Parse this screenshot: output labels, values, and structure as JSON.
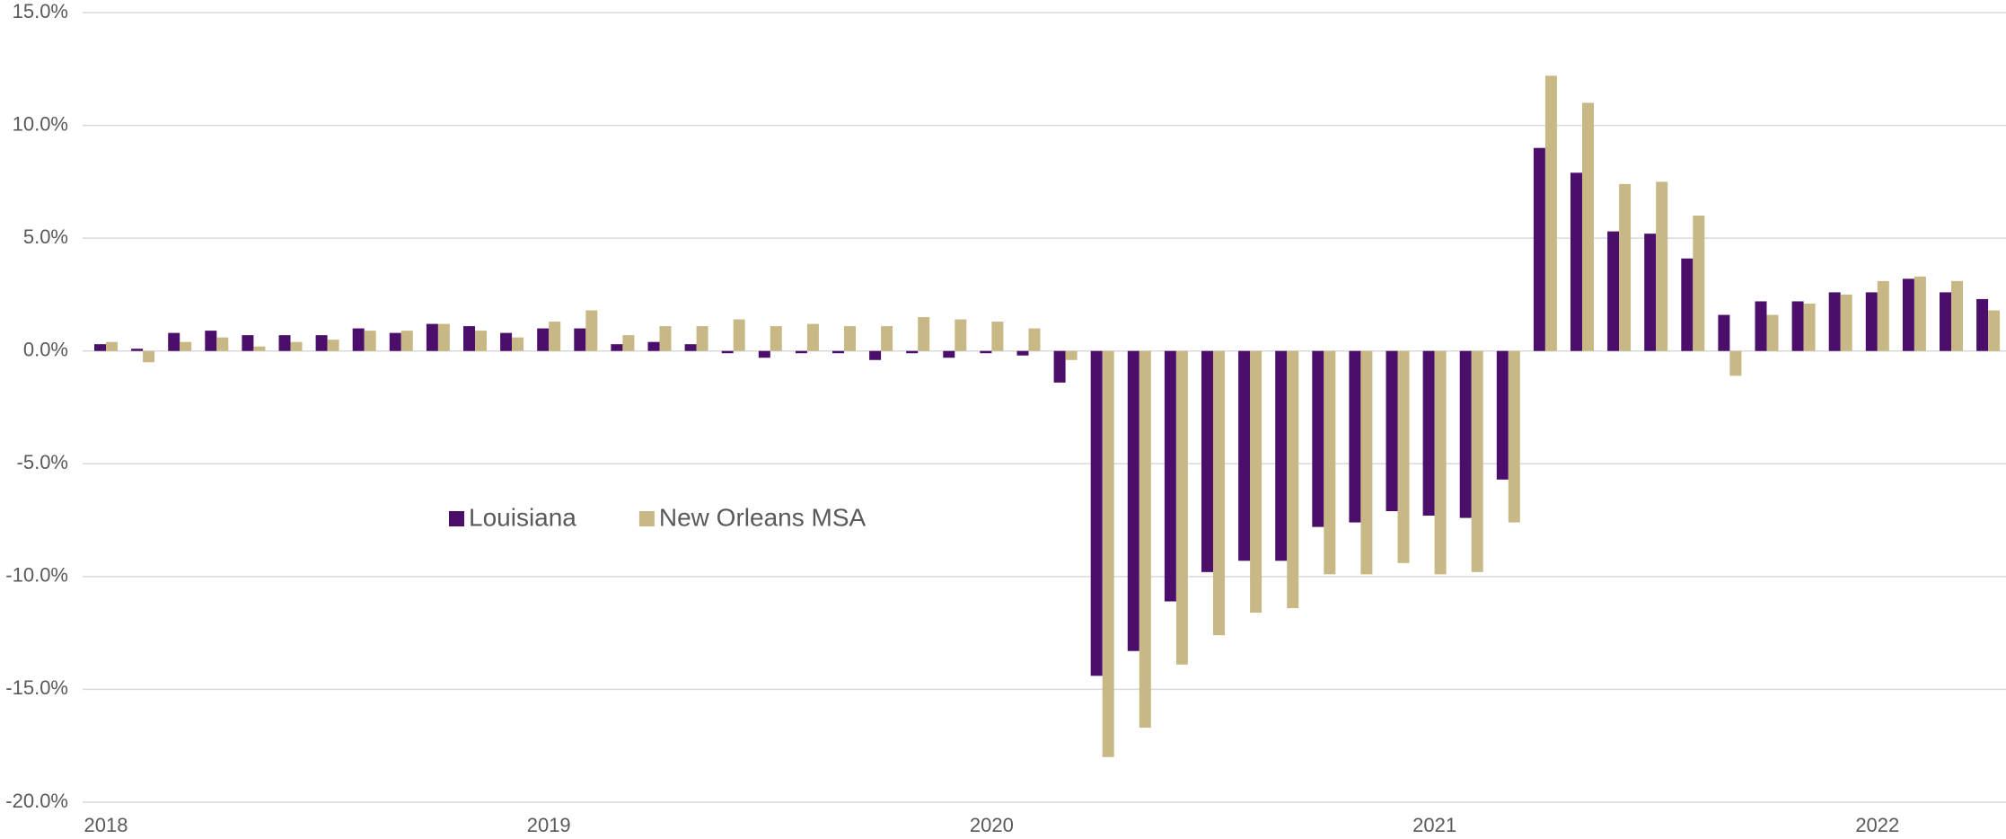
{
  "chart_data": {
    "type": "bar",
    "categories": [
      "2018",
      null,
      null,
      null,
      null,
      null,
      null,
      null,
      null,
      null,
      null,
      null,
      "2019",
      null,
      null,
      null,
      null,
      null,
      null,
      null,
      null,
      null,
      null,
      null,
      "2020",
      null,
      null,
      null,
      null,
      null,
      null,
      null,
      null,
      null,
      null,
      null,
      "2021",
      null,
      null,
      null,
      null,
      null,
      null,
      null,
      null,
      null,
      null,
      null,
      "2022",
      null,
      null,
      null
    ],
    "series": [
      {
        "name": "Louisiana",
        "color": "#4b0f6b",
        "values": [
          0.3,
          0.1,
          0.8,
          0.9,
          0.7,
          0.7,
          0.7,
          1.0,
          0.8,
          1.2,
          1.1,
          0.8,
          1.0,
          1.0,
          0.3,
          0.4,
          0.3,
          -0.1,
          -0.3,
          -0.1,
          -0.1,
          -0.4,
          -0.1,
          -0.3,
          -0.1,
          -0.2,
          -1.4,
          -14.4,
          -13.3,
          -11.1,
          -9.8,
          -9.3,
          -9.3,
          -7.8,
          -7.6,
          -7.1,
          -7.3,
          -7.4,
          -5.7,
          9.0,
          7.9,
          5.3,
          5.2,
          4.1,
          1.6,
          2.2,
          2.2,
          2.6,
          2.6,
          3.2,
          2.6,
          2.3
        ]
      },
      {
        "name": "New Orleans MSA",
        "color": "#c7b885",
        "values": [
          0.4,
          -0.5,
          0.4,
          0.6,
          0.2,
          0.4,
          0.5,
          0.9,
          0.9,
          1.2,
          0.9,
          0.6,
          1.3,
          1.8,
          0.7,
          1.1,
          1.1,
          1.4,
          1.1,
          1.2,
          1.1,
          1.1,
          1.5,
          1.4,
          1.3,
          1.0,
          -0.4,
          -18.0,
          -16.7,
          -13.9,
          -12.6,
          -11.6,
          -11.4,
          -9.9,
          -9.9,
          -9.4,
          -9.9,
          -9.8,
          -7.6,
          12.2,
          11.0,
          7.4,
          7.5,
          6.0,
          -1.1,
          1.6,
          2.1,
          2.5,
          3.1,
          3.3,
          3.1,
          1.8
        ]
      }
    ],
    "ylim": [
      -20,
      15
    ],
    "yticks": [
      {
        "value": -20,
        "label": "-20.0%"
      },
      {
        "value": -15,
        "label": "-15.0%"
      },
      {
        "value": -10,
        "label": "-10.0%"
      },
      {
        "value": -5,
        "label": "-5.0%"
      },
      {
        "value": 0,
        "label": "0.0%"
      },
      {
        "value": 5,
        "label": "5.0%"
      },
      {
        "value": 10,
        "label": "10.0%"
      },
      {
        "value": 15,
        "label": "15.0%"
      }
    ],
    "grid": true,
    "legend": "center-left"
  }
}
